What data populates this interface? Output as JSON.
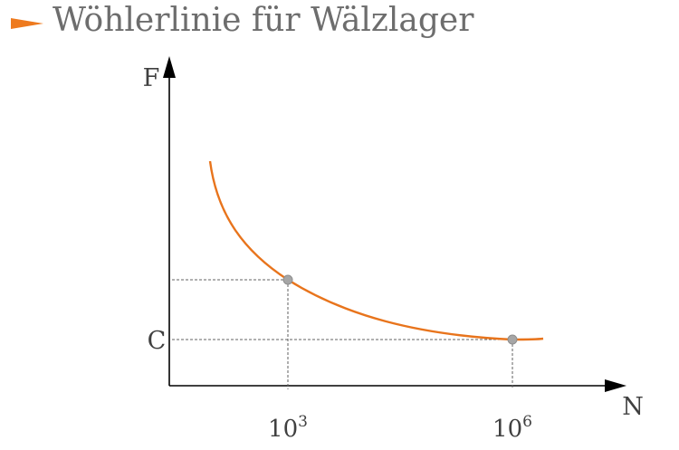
{
  "title": "Wöhlerlinie für Wälzlager",
  "colors": {
    "accent": "#ee7a1e",
    "curve": "#e8741c",
    "axis": "#000000",
    "text": "#404040",
    "marker": "#a6a6a6",
    "guide": "#606060"
  },
  "diagram": {
    "y_axis_label": "F",
    "x_axis_label": "N",
    "y_tick_label": "C",
    "x_ticks": [
      {
        "base": "10",
        "exponent": "3"
      },
      {
        "base": "10",
        "exponent": "6"
      }
    ]
  }
}
